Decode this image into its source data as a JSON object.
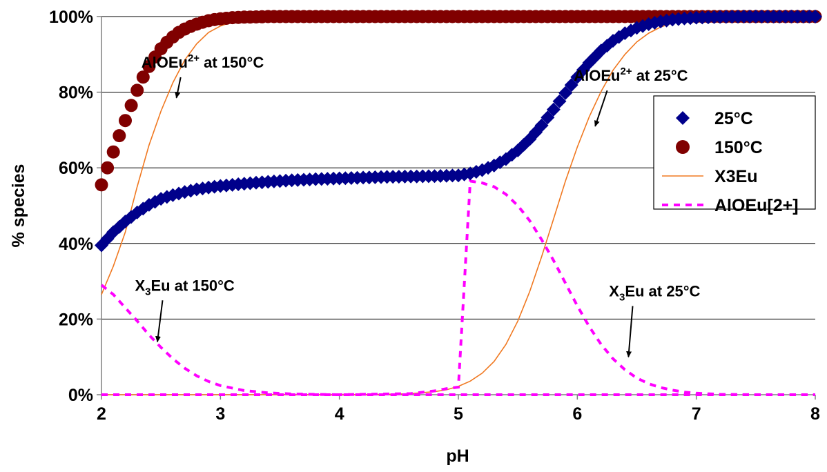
{
  "chart_data": {
    "type": "scatter",
    "xlabel": "pH",
    "ylabel": "% species",
    "xlim": [
      2,
      8
    ],
    "ylim": [
      0,
      100
    ],
    "x_ticks": [
      "2",
      "3",
      "4",
      "5",
      "6",
      "7",
      "8"
    ],
    "y_ticks": [
      "0%",
      "20%",
      "40%",
      "60%",
      "80%",
      "100%"
    ],
    "grid": "horizontal",
    "legend_position": "right",
    "series": [
      {
        "name": "25°C",
        "style": "diamond-markers",
        "color": "#00008B",
        "x": [
          2.0,
          2.1,
          2.2,
          2.3,
          2.4,
          2.5,
          2.6,
          2.7,
          2.8,
          2.9,
          3.0,
          3.2,
          3.4,
          3.6,
          3.8,
          4.0,
          4.2,
          4.4,
          4.6,
          4.8,
          5.0,
          5.1,
          5.2,
          5.3,
          5.4,
          5.5,
          5.6,
          5.7,
          5.8,
          5.9,
          6.0,
          6.1,
          6.2,
          6.3,
          6.4,
          6.5,
          6.6,
          6.7,
          6.8,
          6.9,
          7.0,
          7.2,
          7.4,
          7.6,
          7.8,
          8.0
        ],
        "y": [
          39.5,
          43,
          45.8,
          48.2,
          50.2,
          51.8,
          52.8,
          53.6,
          54.3,
          54.8,
          55.2,
          55.8,
          56.3,
          56.7,
          57.0,
          57.2,
          57.4,
          57.6,
          57.7,
          57.8,
          58.0,
          58.5,
          59.4,
          60.6,
          62.3,
          64.6,
          67.6,
          71.2,
          75.4,
          79.8,
          84.0,
          87.8,
          91.0,
          93.6,
          95.6,
          97.0,
          98.0,
          98.7,
          99.2,
          99.5,
          99.7,
          99.9,
          100,
          100,
          100,
          100
        ]
      },
      {
        "name": "150°C",
        "style": "circle-markers",
        "color": "#800000",
        "x": [
          2.0,
          2.05,
          2.1,
          2.15,
          2.2,
          2.25,
          2.3,
          2.35,
          2.4,
          2.45,
          2.5,
          2.55,
          2.6,
          2.65,
          2.7,
          2.75,
          2.8,
          2.85,
          2.9,
          2.95,
          3.0,
          3.1,
          3.2,
          3.3,
          3.4,
          3.6,
          3.8,
          4.0,
          4.5,
          5.0,
          5.5,
          6.0,
          6.5,
          7.0,
          7.5,
          8.0
        ],
        "y": [
          55.5,
          60,
          64.2,
          68.5,
          72.5,
          76.5,
          80.5,
          84,
          86.8,
          89.3,
          91.5,
          93.2,
          94.6,
          95.8,
          96.7,
          97.4,
          98,
          98.5,
          98.9,
          99.2,
          99.4,
          99.7,
          99.85,
          99.9,
          100,
          100,
          100,
          100,
          100,
          100,
          100,
          100,
          100,
          100,
          100,
          100
        ]
      },
      {
        "name": "X3Eu",
        "style": "solid-line",
        "color": "#F07820",
        "curves": [
          {
            "x": [
              2.0,
              2.1,
              2.2,
              2.3,
              2.4,
              2.5,
              2.6,
              2.7,
              2.8,
              2.9,
              3.0,
              3.1,
              3.2,
              3.4,
              3.6,
              4.0,
              5.0,
              6.0,
              7.0,
              8.0
            ],
            "y": [
              26.5,
              34,
              43,
              55,
              66,
              75,
              82.5,
              88.5,
              92.8,
              95.8,
              97.5,
              98.6,
              99.2,
              99.7,
              100,
              100,
              100,
              100,
              100,
              100
            ]
          },
          {
            "x": [
              2.0,
              3.0,
              4.0,
              4.4,
              4.6,
              4.8,
              4.9,
              5.0,
              5.1,
              5.2,
              5.3,
              5.4,
              5.5,
              5.6,
              5.7,
              5.8,
              5.9,
              6.0,
              6.1,
              6.2,
              6.3,
              6.4,
              6.5,
              6.6,
              6.7,
              6.8,
              6.9,
              7.0,
              7.2,
              7.5,
              8.0
            ],
            "y": [
              0,
              0,
              0,
              0.1,
              0.3,
              0.8,
              1.3,
              2.2,
              3.6,
              5.7,
              8.8,
              13.3,
              19.5,
              27.3,
              36.5,
              46.5,
              56.5,
              65.5,
              73.5,
              80.2,
              85.8,
              90.0,
              93.3,
              95.6,
              97.2,
              98.3,
              99.0,
              99.4,
              99.8,
              100,
              100
            ]
          }
        ]
      },
      {
        "name": "AlOEu[2+]",
        "style": "dashed-line",
        "color": "#FF00FF",
        "curves": [
          {
            "x": [
              2.0,
              2.1,
              2.2,
              2.3,
              2.4,
              2.5,
              2.6,
              2.7,
              2.8,
              2.9,
              3.0,
              3.2,
              3.4,
              3.6,
              3.8,
              4.0,
              5.0,
              6.0,
              7.0,
              8.0
            ],
            "y": [
              29,
              26.5,
              23,
              19.5,
              15.8,
              12.5,
              9.5,
              7,
              5,
              3.5,
              2.4,
              1.1,
              0.5,
              0.2,
              0.1,
              0,
              0,
              0,
              0,
              0
            ]
          },
          {
            "x": [
              2.0,
              3.0,
              4.0,
              4.6,
              4.8,
              4.9,
              5.0,
              5.1,
              5.2,
              5.3,
              5.4,
              5.5,
              5.6,
              5.7,
              5.8,
              5.9,
              6.0,
              6.1,
              6.2,
              6.3,
              6.4,
              6.5,
              6.6,
              6.7,
              6.8,
              6.9,
              7.0,
              7.2,
              7.5,
              8.0
            ],
            "y": [
              0,
              0,
              0,
              0.3,
              1.0,
              1.6,
              2.0,
              56.5,
              56,
              55,
              53,
              50,
              46,
              41,
              35.5,
              29.5,
              23.5,
              18,
              13.3,
              9.5,
              6.6,
              4.4,
              2.9,
              1.9,
              1.2,
              0.7,
              0.4,
              0.1,
              0,
              0
            ]
          }
        ]
      }
    ],
    "annotations": [
      {
        "text": "AlOEu",
        "sup": "2+",
        "suffix": " at 150°C",
        "x": 2.85,
        "y": 86.5,
        "arrow_to": [
          2.63,
          78.5
        ]
      },
      {
        "text": "AlOEu",
        "sup": "2+",
        "suffix": " at 25°C",
        "x": 6.45,
        "y": 83,
        "arrow_to": [
          6.15,
          71
        ]
      },
      {
        "text": "X",
        "sub": "3",
        "suffix": "Eu at 150°C",
        "x": 2.7,
        "y": 27.5,
        "arrow_to": [
          2.47,
          14
        ]
      },
      {
        "text": "X",
        "sub": "3",
        "suffix": "Eu at 25°C",
        "x": 6.65,
        "y": 26,
        "arrow_to": [
          6.43,
          10
        ]
      }
    ]
  }
}
